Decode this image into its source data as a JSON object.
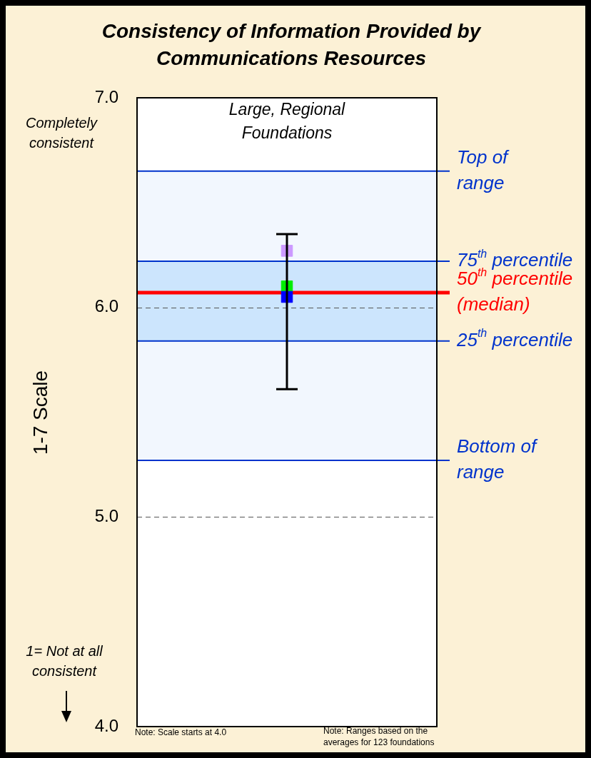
{
  "chart_data": {
    "type": "scatter",
    "title": "Consistency of Information Provided by Communications Resources",
    "ylabel": "1-7 Scale",
    "categories": [
      "Large, Regional Foundations"
    ],
    "series": [
      {
        "color": "#cc99ff",
        "values": [
          6.27
        ]
      },
      {
        "color": "#00ee00",
        "values": [
          6.1
        ]
      },
      {
        "color": "#0000ff",
        "values": [
          6.05
        ],
        "errors": [
          [
            5.61,
            6.35
          ]
        ]
      }
    ],
    "ylim": [
      4,
      7
    ],
    "yticks": [
      {
        "value": 4,
        "label": "4.0"
      },
      {
        "value": 5,
        "label": "5.0"
      },
      {
        "value": 6,
        "label": "6.0"
      },
      {
        "value": 7,
        "label": "7.0"
      }
    ],
    "grid": "y",
    "legend": false,
    "marker": "square",
    "bands": [
      {
        "axis": "y",
        "from": 5.27,
        "to": 6.65,
        "color": "#f2f7fe"
      },
      {
        "axis": "y",
        "from": 5.84,
        "to": 6.22,
        "color": "#cce5fd"
      }
    ],
    "ref_lines": [
      {
        "axis": "y",
        "value": 6.65,
        "label": "Top of\nrange",
        "color": "#0033cc"
      },
      {
        "axis": "y",
        "value": 6.22,
        "label": "75$^{th}$ percentile",
        "color": "#0033cc"
      },
      {
        "axis": "y",
        "value": 6.07,
        "label": "50$^{th}$ percentile\n(median)",
        "color": "#ff0000"
      },
      {
        "axis": "y",
        "value": 5.84,
        "label": "25$^{th}$ percentile",
        "color": "#0033cc"
      },
      {
        "axis": "y",
        "value": 5.27,
        "label": "Bottom of\nrange",
        "color": "#0033cc"
      }
    ],
    "annotations": [
      "Completely consistent",
      "1= Not at all consistent",
      "Note: Scale starts at 4.0",
      "Note: Ranges based on the averages for 123 foundations"
    ]
  }
}
